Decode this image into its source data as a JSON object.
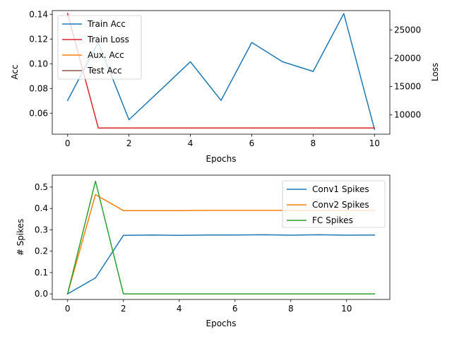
{
  "chart_data": [
    {
      "type": "line",
      "xlabel": "Epochs",
      "ylabel": "Acc",
      "y2label": "Loss",
      "xlim": [
        -0.5,
        10.5
      ],
      "ylim": [
        0.043,
        0.143
      ],
      "y2lim": [
        6600,
        28400
      ],
      "xticks": [
        0,
        2,
        4,
        6,
        8,
        10
      ],
      "yticks": [
        0.06,
        0.08,
        0.1,
        0.12,
        0.14
      ],
      "yticklabels": [
        "0.06",
        "0.08",
        "0.10",
        "0.12",
        "0.14"
      ],
      "y2ticks": [
        10000,
        15000,
        20000,
        25000
      ],
      "y2ticklabels": [
        "10000",
        "15000",
        "20000",
        "25000"
      ],
      "legend_position": "top-left",
      "series": [
        {
          "name": "Train Acc",
          "axis": "left",
          "color": "#1f77b4",
          "x": [
            0,
            1,
            2,
            3,
            4,
            5,
            6,
            7,
            8,
            9,
            10
          ],
          "values": [
            0.0703,
            0.1172,
            0.0547,
            0.0781,
            0.1016,
            0.0703,
            0.1172,
            0.1016,
            0.0938,
            0.1406,
            0.0469
          ]
        },
        {
          "name": "Train Loss",
          "axis": "right",
          "color": "#d62728",
          "x": [
            0,
            1,
            2,
            3,
            4,
            5,
            6,
            7,
            8,
            9,
            10
          ],
          "values": [
            27900,
            7700,
            7700,
            7700,
            7700,
            7700,
            7700,
            7700,
            7700,
            7700,
            7700
          ]
        },
        {
          "name": "Aux. Acc",
          "axis": "left",
          "color": "#ff7f0e",
          "x": [],
          "values": []
        },
        {
          "name": "Test Acc",
          "axis": "left",
          "color": "#8c564b",
          "x": [],
          "values": []
        }
      ]
    },
    {
      "type": "line",
      "xlabel": "Epochs",
      "ylabel": "# Spikes",
      "xlim": [
        -0.55,
        11.55
      ],
      "ylim": [
        -0.026,
        0.556
      ],
      "xticks": [
        0,
        2,
        4,
        6,
        8,
        10
      ],
      "yticks": [
        0.0,
        0.1,
        0.2,
        0.3,
        0.4,
        0.5
      ],
      "yticklabels": [
        "0.0",
        "0.1",
        "0.2",
        "0.3",
        "0.4",
        "0.5"
      ],
      "legend_position": "top-right",
      "series": [
        {
          "name": "Conv1 Spikes",
          "color": "#1f77b4",
          "x": [
            0,
            1,
            2,
            3,
            4,
            5,
            6,
            7,
            8,
            9,
            10,
            11
          ],
          "values": [
            0.0,
            0.075,
            0.274,
            0.276,
            0.274,
            0.276,
            0.276,
            0.277,
            0.275,
            0.277,
            0.275,
            0.276
          ]
        },
        {
          "name": "Conv2 Spikes",
          "color": "#ff7f0e",
          "x": [
            0,
            1,
            2,
            3,
            4,
            5,
            6,
            7,
            8,
            9,
            10,
            11
          ],
          "values": [
            0.0,
            0.465,
            0.39,
            0.39,
            0.39,
            0.391,
            0.391,
            0.391,
            0.391,
            0.391,
            0.391,
            0.391
          ]
        },
        {
          "name": "FC Spikes",
          "color": "#2ca02c",
          "x": [
            0,
            1,
            2,
            3,
            4,
            5,
            6,
            7,
            8,
            9,
            10,
            11
          ],
          "values": [
            0.0,
            0.528,
            0.0,
            0.0,
            0.0,
            0.0,
            0.0,
            0.0,
            0.0,
            0.0,
            0.0,
            0.0
          ]
        }
      ]
    }
  ]
}
